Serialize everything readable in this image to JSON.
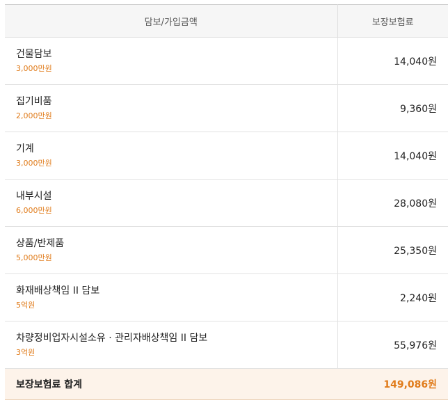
{
  "table": {
    "header": {
      "coverage": "담보/가입금액",
      "premium": "보장보험료"
    },
    "rows": [
      {
        "name": "건물담보",
        "amount": "3,000만원",
        "premium": "14,040원"
      },
      {
        "name": "집기비품",
        "amount": "2,000만원",
        "premium": "9,360원"
      },
      {
        "name": "기계",
        "amount": "3,000만원",
        "premium": "14,040원"
      },
      {
        "name": "내부시설",
        "amount": "6,000만원",
        "premium": "28,080원"
      },
      {
        "name": "상품/반제품",
        "amount": "5,000만원",
        "premium": "25,350원"
      },
      {
        "name": "화재배상책임 II 담보",
        "amount": "5억원",
        "premium": "2,240원"
      },
      {
        "name": "차량정비업자시설소유 · 관리자배상책임 II 담보",
        "amount": "3억원",
        "premium": "55,976원"
      }
    ],
    "total": {
      "label": "보장보험료 합계",
      "value": "149,086원"
    }
  },
  "colors": {
    "accent": "#e07b1a",
    "header_bg": "#f6f6f6",
    "total_bg": "#fdf3ea"
  }
}
